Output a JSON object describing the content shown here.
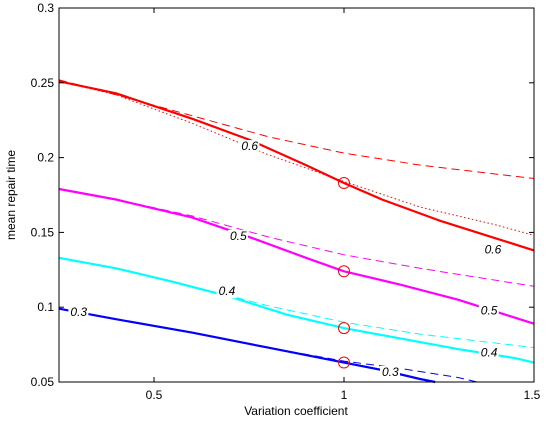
{
  "chart_data": {
    "type": "line",
    "title": "",
    "xlabel": "Variation coefficient",
    "ylabel": "mean repair time",
    "xlim": [
      0.25,
      1.5
    ],
    "ylim": [
      0.05,
      0.3
    ],
    "xticks": [
      0.5,
      1,
      1.5
    ],
    "xtick_labels": [
      "0.5",
      "1",
      "1.5"
    ],
    "yticks": [
      0.05,
      0.1,
      0.15,
      0.2,
      0.25,
      0.3
    ],
    "ytick_labels": [
      "0.05",
      "0.1",
      "0.15",
      "0.2",
      "0.25",
      "0.3"
    ],
    "grid": false,
    "legend": "none",
    "series": [
      {
        "level": "0.6",
        "color": "#ff0000",
        "solid": {
          "x": [
            0.25,
            0.4,
            0.6,
            0.75,
            0.9,
            1.0,
            1.1,
            1.25,
            1.4,
            1.5
          ],
          "y": [
            0.251,
            0.243,
            0.226,
            0.212,
            0.195,
            0.183,
            0.172,
            0.158,
            0.146,
            0.138
          ]
        },
        "dashed": {
          "x": [
            0.25,
            0.4,
            0.6,
            0.8,
            1.0,
            1.2,
            1.4,
            1.5
          ],
          "y": [
            0.252,
            0.242,
            0.228,
            0.214,
            0.203,
            0.195,
            0.189,
            0.186
          ]
        },
        "dotted": {
          "x": [
            0.25,
            0.4,
            0.6,
            0.8,
            1.0,
            1.2,
            1.4,
            1.5
          ],
          "y": [
            0.251,
            0.242,
            0.223,
            0.202,
            0.184,
            0.167,
            0.155,
            0.148
          ]
        },
        "marker": {
          "x": 1.0,
          "y": 0.183
        },
        "labels": [
          {
            "x": 0.73,
            "y": 0.205,
            "text": "0.6"
          },
          {
            "x": 1.37,
            "y": 0.136,
            "text": "0.6"
          }
        ]
      },
      {
        "level": "0.5",
        "color": "#ff00ff",
        "solid": {
          "x": [
            0.25,
            0.4,
            0.6,
            0.75,
            0.9,
            1.0,
            1.15,
            1.3,
            1.45,
            1.5
          ],
          "y": [
            0.179,
            0.172,
            0.16,
            0.147,
            0.133,
            0.124,
            0.115,
            0.105,
            0.093,
            0.089
          ]
        },
        "dashed": {
          "x": [
            0.25,
            0.4,
            0.6,
            0.8,
            1.0,
            1.2,
            1.4,
            1.5
          ],
          "y": [
            0.179,
            0.172,
            0.161,
            0.147,
            0.135,
            0.126,
            0.118,
            0.114
          ]
        },
        "marker": {
          "x": 1.0,
          "y": 0.124
        },
        "labels": [
          {
            "x": 0.7,
            "y": 0.145,
            "text": "0.5"
          },
          {
            "x": 1.36,
            "y": 0.095,
            "text": "0.5"
          }
        ]
      },
      {
        "level": "0.4",
        "color": "#00ffff",
        "solid": {
          "x": [
            0.25,
            0.4,
            0.55,
            0.7,
            0.85,
            1.0,
            1.15,
            1.3,
            1.45,
            1.5
          ],
          "y": [
            0.133,
            0.126,
            0.117,
            0.107,
            0.095,
            0.086,
            0.079,
            0.072,
            0.066,
            0.063
          ]
        },
        "dashed": {
          "x": [
            0.25,
            0.4,
            0.6,
            0.8,
            1.0,
            1.2,
            1.4,
            1.5
          ],
          "y": [
            0.133,
            0.126,
            0.114,
            0.101,
            0.09,
            0.082,
            0.076,
            0.073
          ]
        },
        "marker": {
          "x": 1.0,
          "y": 0.086
        },
        "labels": [
          {
            "x": 0.67,
            "y": 0.108,
            "text": "0.4"
          },
          {
            "x": 1.36,
            "y": 0.067,
            "text": "0.4"
          }
        ]
      },
      {
        "level": "0.3",
        "color": "#0000ff",
        "solid": {
          "x": [
            0.25,
            0.4,
            0.6,
            0.8,
            1.0,
            1.1,
            1.2,
            1.24
          ],
          "y": [
            0.099,
            0.092,
            0.083,
            0.073,
            0.063,
            0.058,
            0.052,
            0.05
          ]
        },
        "dashed": {
          "x": [
            0.25,
            0.4,
            0.6,
            0.8,
            1.0,
            1.15,
            1.3,
            1.35
          ],
          "y": [
            0.099,
            0.092,
            0.083,
            0.073,
            0.064,
            0.059,
            0.053,
            0.05
          ]
        },
        "marker": {
          "x": 1.0,
          "y": 0.063
        },
        "labels": [
          {
            "x": 0.28,
            "y": 0.094,
            "text": "0.3"
          },
          {
            "x": 1.1,
            "y": 0.054,
            "text": "0.3"
          }
        ]
      }
    ]
  }
}
